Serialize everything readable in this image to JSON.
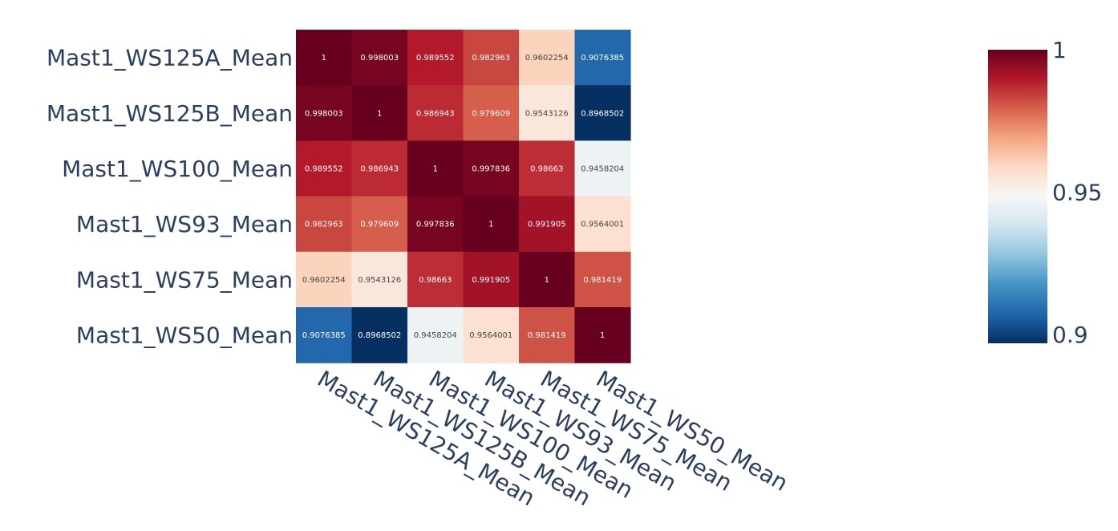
{
  "chart_data": {
    "type": "heatmap",
    "title": "",
    "x_labels": [
      "Mast1_WS125A_Mean",
      "Mast1_WS125B_Mean",
      "Mast1_WS100_Mean",
      "Mast1_WS93_Mean",
      "Mast1_WS75_Mean",
      "Mast1_WS50_Mean"
    ],
    "y_labels": [
      "Mast1_WS125A_Mean",
      "Mast1_WS125B_Mean",
      "Mast1_WS100_Mean",
      "Mast1_WS93_Mean",
      "Mast1_WS75_Mean",
      "Mast1_WS50_Mean"
    ],
    "values": [
      [
        1,
        0.998003,
        0.989552,
        0.982963,
        0.9602254,
        0.9076385
      ],
      [
        0.998003,
        1,
        0.986943,
        0.979609,
        0.9543126,
        0.8968502
      ],
      [
        0.989552,
        0.986943,
        1,
        0.997836,
        0.98663,
        0.9458204
      ],
      [
        0.982963,
        0.979609,
        0.997836,
        1,
        0.991905,
        0.9564001
      ],
      [
        0.9602254,
        0.9543126,
        0.98663,
        0.991905,
        1,
        0.981419
      ],
      [
        0.9076385,
        0.8968502,
        0.9458204,
        0.9564001,
        0.981419,
        1
      ]
    ],
    "cell_labels": [
      [
        "1",
        "0.998003",
        "0.989552",
        "0.982963",
        "0.9602254",
        "0.9076385"
      ],
      [
        "0.998003",
        "1",
        "0.986943",
        "0.979609",
        "0.9543126",
        "0.8968502"
      ],
      [
        "0.989552",
        "0.986943",
        "1",
        "0.997836",
        "0.98663",
        "0.9458204"
      ],
      [
        "0.982963",
        "0.979609",
        "0.997836",
        "1",
        "0.991905",
        "0.9564001"
      ],
      [
        "0.9602254",
        "0.9543126",
        "0.98663",
        "0.991905",
        "1",
        "0.981419"
      ],
      [
        "0.9076385",
        "0.8968502",
        "0.9458204",
        "0.9564001",
        "0.981419",
        "1"
      ]
    ],
    "colorscale": "RdBu_r",
    "zmin": 0.8968502,
    "zmax": 1,
    "colorbar": {
      "ticks": [
        0.9,
        0.95,
        1
      ],
      "tick_labels": [
        "0.9",
        "0.95",
        "1"
      ]
    }
  }
}
